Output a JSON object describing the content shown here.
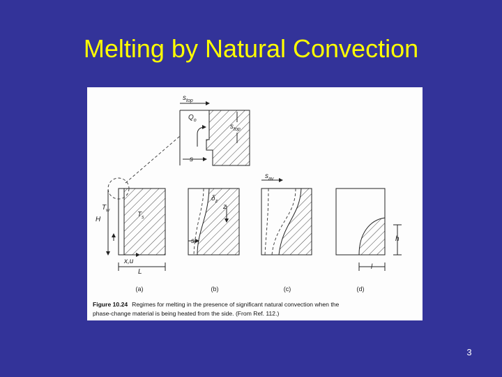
{
  "slide": {
    "title": "Melting by Natural Convection",
    "page_number": "3"
  },
  "figure": {
    "symbols": [
      {
        "main": "s",
        "sub": "top"
      },
      {
        "main": "Q",
        "sub": "o"
      },
      {
        "main": "s",
        "sub": "top"
      },
      {
        "main": "s"
      },
      {
        "main": "s",
        "sub": "av"
      },
      {
        "main": "T",
        "sub": "w"
      },
      {
        "main": "T",
        "sub": "s"
      },
      {
        "main": "H"
      },
      {
        "main": "x,u"
      },
      {
        "main": "L"
      },
      {
        "main": "δ",
        "sub": "z"
      },
      {
        "main": "z"
      },
      {
        "main": "s"
      },
      {
        "main": "h"
      },
      {
        "main": "l"
      }
    ],
    "panels": [
      "(a)",
      "(b)",
      "(c)",
      "(d)"
    ],
    "figure_label": "Figure 10.24",
    "caption_lines": [
      "Regimes for melting in the presence of significant natural convection when the",
      "phase-change material is being heated from the side. (From Ref. 112.)"
    ]
  }
}
